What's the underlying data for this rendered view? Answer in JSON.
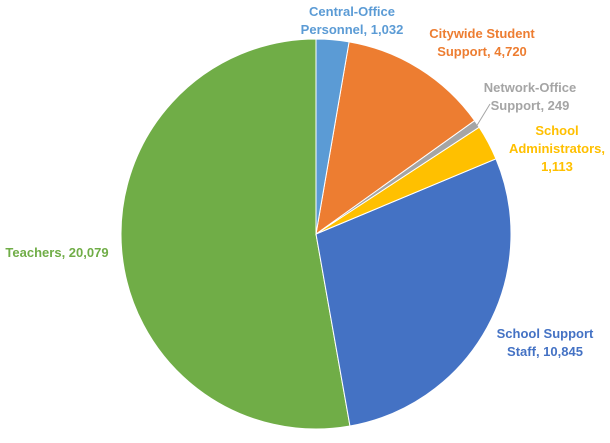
{
  "chart_data": {
    "type": "pie",
    "categories": [
      "Central-Office Personnel",
      "Citywide Student Support",
      "Network-Office Support",
      "School Administrators",
      "School Support Staff",
      "Teachers"
    ],
    "values": [
      1032,
      4720,
      249,
      1113,
      10845,
      20079
    ],
    "value_labels": [
      "1,032",
      "4,720",
      "249",
      "1,113",
      "10,845",
      "20,079"
    ],
    "colors": [
      "#5b9bd5",
      "#ed7d31",
      "#a5a5a5",
      "#ffc000",
      "#4472c4",
      "#70ad47"
    ]
  }
}
